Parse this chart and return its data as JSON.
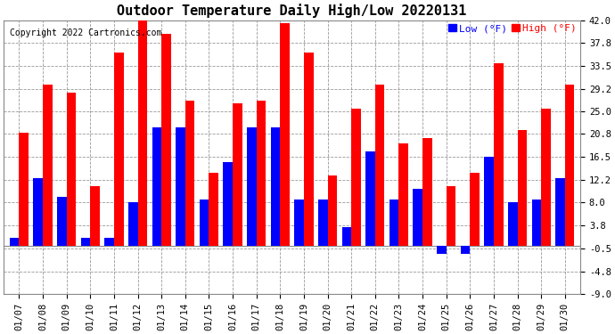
{
  "title": "Outdoor Temperature Daily High/Low 20220131",
  "copyright": "Copyright 2022 Cartronics.com",
  "dates": [
    "01/07",
    "01/08",
    "01/09",
    "01/10",
    "01/11",
    "01/12",
    "01/13",
    "01/14",
    "01/15",
    "01/16",
    "01/17",
    "01/18",
    "01/19",
    "01/20",
    "01/21",
    "01/22",
    "01/23",
    "01/24",
    "01/25",
    "01/26",
    "01/27",
    "01/28",
    "01/29",
    "01/30"
  ],
  "highs": [
    21.0,
    30.0,
    28.5,
    11.0,
    36.0,
    43.0,
    39.5,
    27.0,
    13.5,
    26.5,
    27.0,
    41.5,
    36.0,
    13.0,
    25.5,
    30.0,
    19.0,
    20.0,
    11.0,
    13.5,
    34.0,
    21.5,
    25.5,
    30.0
  ],
  "lows": [
    1.5,
    12.5,
    9.0,
    1.5,
    1.5,
    8.0,
    22.0,
    22.0,
    8.5,
    15.5,
    22.0,
    22.0,
    8.5,
    8.5,
    3.5,
    17.5,
    8.5,
    10.5,
    -1.5,
    -1.5,
    16.5,
    8.0,
    8.5,
    12.5
  ],
  "ylim_min": -9.0,
  "ylim_max": 42.0,
  "yticks": [
    -9.0,
    -4.8,
    -0.5,
    3.8,
    8.0,
    12.2,
    16.5,
    20.8,
    25.0,
    29.2,
    33.5,
    37.8,
    42.0
  ],
  "high_color": "#ff0000",
  "low_color": "#0000ff",
  "bar_width": 0.4,
  "bg_color": "#ffffff",
  "grid_color": "#999999",
  "title_fontsize": 11,
  "copyright_fontsize": 7,
  "legend_fontsize": 8,
  "tick_fontsize": 7.5
}
